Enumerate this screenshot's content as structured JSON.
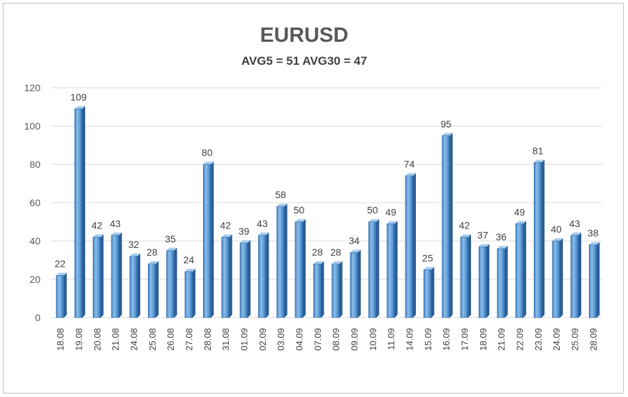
{
  "chart_data": {
    "type": "bar",
    "title": "EURUSD",
    "subtitle": "AVG5 = 51 AVG30 = 47",
    "xlabel": "",
    "ylabel": "",
    "ylim": [
      0,
      120
    ],
    "yticks": [
      0,
      20,
      40,
      60,
      80,
      100,
      120
    ],
    "grid": true,
    "legend": "none",
    "bar_color": "#5b9bd5",
    "categories": [
      "18.08",
      "19.08",
      "20.08",
      "21.08",
      "24.08",
      "25.08",
      "26.08",
      "27.08",
      "28.08",
      "31.08",
      "01.09",
      "02.09",
      "03.09",
      "04.09",
      "07.09",
      "08.09",
      "09.09",
      "10.09",
      "11.09",
      "14.09",
      "15.09",
      "16.09",
      "17.09",
      "18.09",
      "21.09",
      "22.09",
      "23.09",
      "24.09",
      "25.09",
      "28.09"
    ],
    "values": [
      22,
      109,
      42,
      43,
      32,
      28,
      35,
      24,
      80,
      42,
      39,
      43,
      58,
      50,
      28,
      28,
      34,
      50,
      49,
      74,
      25,
      95,
      42,
      37,
      36,
      49,
      81,
      40,
      43,
      38
    ]
  }
}
